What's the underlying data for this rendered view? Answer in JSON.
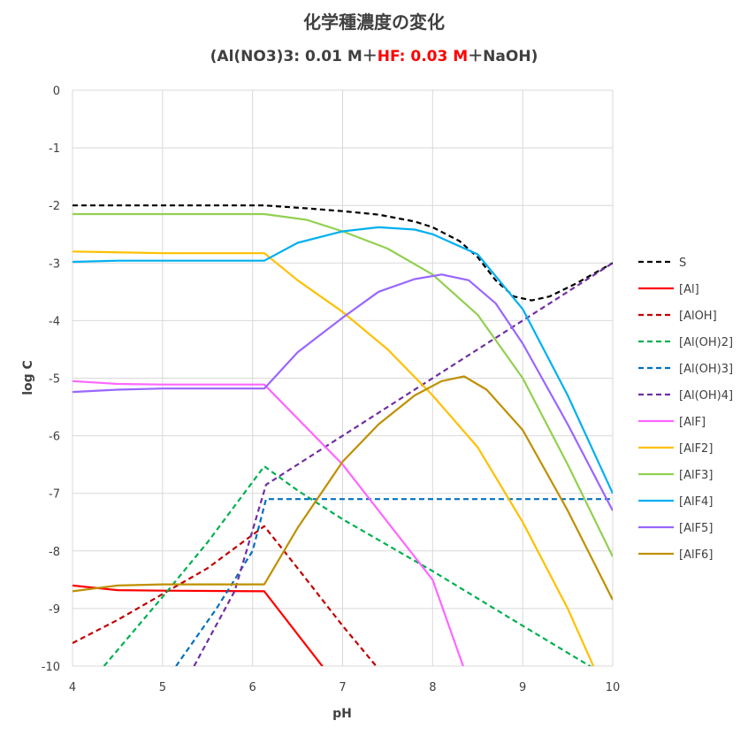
{
  "chart_data": {
    "type": "line",
    "title": "化学種濃度の変化",
    "subtitle_parts": [
      {
        "text": "(Al(NO3)3: 0.01 M＋",
        "color": "#404040"
      },
      {
        "text": "HF: 0.03 M",
        "color": "#ff0000"
      },
      {
        "text": "＋NaOH)",
        "color": "#404040"
      }
    ],
    "xlabel": "pH",
    "ylabel": "log C",
    "xlim": [
      4,
      10
    ],
    "ylim": [
      -10,
      0
    ],
    "xticks": [
      "4",
      "5",
      "6",
      "7",
      "8",
      "9",
      "10"
    ],
    "yticks": [
      "0",
      "-1",
      "-2",
      "-3",
      "-4",
      "-5",
      "-6",
      "-7",
      "-8",
      "-9",
      "-10"
    ],
    "grid": true,
    "legend_position": "right",
    "series": [
      {
        "name": "S",
        "color": "#000000",
        "dashed": true,
        "points": [
          [
            4,
            -2.0
          ],
          [
            5,
            -2.0
          ],
          [
            6.13,
            -2.0
          ],
          [
            6.6,
            -2.05
          ],
          [
            7.0,
            -2.1
          ],
          [
            7.4,
            -2.16
          ],
          [
            7.8,
            -2.28
          ],
          [
            8.0,
            -2.38
          ],
          [
            8.3,
            -2.62
          ],
          [
            8.5,
            -2.9
          ],
          [
            8.7,
            -3.3
          ],
          [
            8.9,
            -3.58
          ],
          [
            9.1,
            -3.65
          ],
          [
            9.3,
            -3.58
          ],
          [
            9.6,
            -3.35
          ],
          [
            10,
            -3.0
          ]
        ]
      },
      {
        "name": "[Al]",
        "color": "#ff0000",
        "dashed": false,
        "points": [
          [
            4,
            -8.6
          ],
          [
            4.5,
            -8.68
          ],
          [
            5,
            -8.69
          ],
          [
            6.13,
            -8.7
          ],
          [
            6.6,
            -9.65
          ],
          [
            6.8,
            -10.05
          ]
        ]
      },
      {
        "name": "[AlOH]",
        "color": "#c00000",
        "dashed": true,
        "points": [
          [
            4,
            -9.6
          ],
          [
            4.5,
            -9.2
          ],
          [
            5,
            -8.75
          ],
          [
            5.5,
            -8.3
          ],
          [
            6.13,
            -7.57
          ],
          [
            6.5,
            -8.3
          ],
          [
            7,
            -9.3
          ],
          [
            7.4,
            -10.05
          ]
        ]
      },
      {
        "name": "[Al(OH)2]",
        "color": "#00b050",
        "dashed": true,
        "points": [
          [
            4.35,
            -10.0
          ],
          [
            5,
            -8.8
          ],
          [
            5.5,
            -7.85
          ],
          [
            6.13,
            -6.53
          ],
          [
            6.5,
            -6.95
          ],
          [
            7,
            -7.45
          ],
          [
            8,
            -8.35
          ],
          [
            9,
            -9.3
          ],
          [
            9.8,
            -10.05
          ]
        ]
      },
      {
        "name": "[Al(OH)3]",
        "color": "#0070c0",
        "dashed": true,
        "points": [
          [
            5.15,
            -10.0
          ],
          [
            5.6,
            -9.0
          ],
          [
            6.0,
            -8.0
          ],
          [
            6.15,
            -7.1
          ],
          [
            10,
            -7.1
          ]
        ]
      },
      {
        "name": "[Al(OH)4]",
        "color": "#7030a0",
        "dashed": true,
        "points": [
          [
            5.35,
            -10.0
          ],
          [
            5.8,
            -8.7
          ],
          [
            6.15,
            -6.85
          ],
          [
            7,
            -6.0
          ],
          [
            8,
            -5.0
          ],
          [
            9,
            -4.0
          ],
          [
            10,
            -3.0
          ]
        ]
      },
      {
        "name": "[AlF]",
        "color": "#ff66ff",
        "dashed": false,
        "points": [
          [
            4,
            -5.05
          ],
          [
            4.5,
            -5.1
          ],
          [
            5,
            -5.11
          ],
          [
            6.13,
            -5.11
          ],
          [
            7,
            -6.5
          ],
          [
            8,
            -8.5
          ],
          [
            8.35,
            -10.05
          ]
        ]
      },
      {
        "name": "[AlF2]",
        "color": "#ffc000",
        "dashed": false,
        "points": [
          [
            4,
            -2.8
          ],
          [
            5,
            -2.83
          ],
          [
            6.13,
            -2.83
          ],
          [
            6.5,
            -3.3
          ],
          [
            7,
            -3.85
          ],
          [
            7.5,
            -4.5
          ],
          [
            8,
            -5.3
          ],
          [
            8.5,
            -6.2
          ],
          [
            9,
            -7.5
          ],
          [
            9.5,
            -9.0
          ],
          [
            9.8,
            -10.05
          ]
        ]
      },
      {
        "name": "[AlF3]",
        "color": "#92d050",
        "dashed": false,
        "points": [
          [
            4,
            -2.15
          ],
          [
            5,
            -2.15
          ],
          [
            6.13,
            -2.15
          ],
          [
            6.6,
            -2.25
          ],
          [
            7,
            -2.45
          ],
          [
            7.5,
            -2.75
          ],
          [
            8,
            -3.2
          ],
          [
            8.5,
            -3.9
          ],
          [
            9,
            -5.0
          ],
          [
            9.5,
            -6.5
          ],
          [
            10,
            -8.1
          ]
        ]
      },
      {
        "name": "[AlF4]",
        "color": "#00b0f0",
        "dashed": false,
        "points": [
          [
            4,
            -2.98
          ],
          [
            4.5,
            -2.96
          ],
          [
            5,
            -2.96
          ],
          [
            6.13,
            -2.96
          ],
          [
            6.5,
            -2.65
          ],
          [
            7,
            -2.45
          ],
          [
            7.4,
            -2.38
          ],
          [
            7.8,
            -2.42
          ],
          [
            8.0,
            -2.5
          ],
          [
            8.5,
            -2.85
          ],
          [
            9,
            -3.8
          ],
          [
            9.5,
            -5.3
          ],
          [
            10,
            -7.0
          ]
        ]
      },
      {
        "name": "[AlF5]",
        "color": "#9966ff",
        "dashed": false,
        "points": [
          [
            4,
            -5.24
          ],
          [
            4.5,
            -5.2
          ],
          [
            5,
            -5.18
          ],
          [
            6.13,
            -5.18
          ],
          [
            6.5,
            -4.55
          ],
          [
            7,
            -3.95
          ],
          [
            7.4,
            -3.5
          ],
          [
            7.8,
            -3.28
          ],
          [
            8.1,
            -3.2
          ],
          [
            8.4,
            -3.3
          ],
          [
            8.7,
            -3.7
          ],
          [
            9,
            -4.4
          ],
          [
            9.5,
            -5.8
          ],
          [
            10,
            -7.3
          ]
        ]
      },
      {
        "name": "[AlF6]",
        "color": "#bf9000",
        "dashed": false,
        "points": [
          [
            4,
            -8.7
          ],
          [
            4.5,
            -8.6
          ],
          [
            5,
            -8.58
          ],
          [
            6.13,
            -8.58
          ],
          [
            6.5,
            -7.6
          ],
          [
            7,
            -6.45
          ],
          [
            7.4,
            -5.8
          ],
          [
            7.8,
            -5.3
          ],
          [
            8.1,
            -5.05
          ],
          [
            8.35,
            -4.97
          ],
          [
            8.6,
            -5.2
          ],
          [
            9,
            -5.9
          ],
          [
            9.5,
            -7.3
          ],
          [
            10,
            -8.85
          ]
        ]
      }
    ]
  }
}
